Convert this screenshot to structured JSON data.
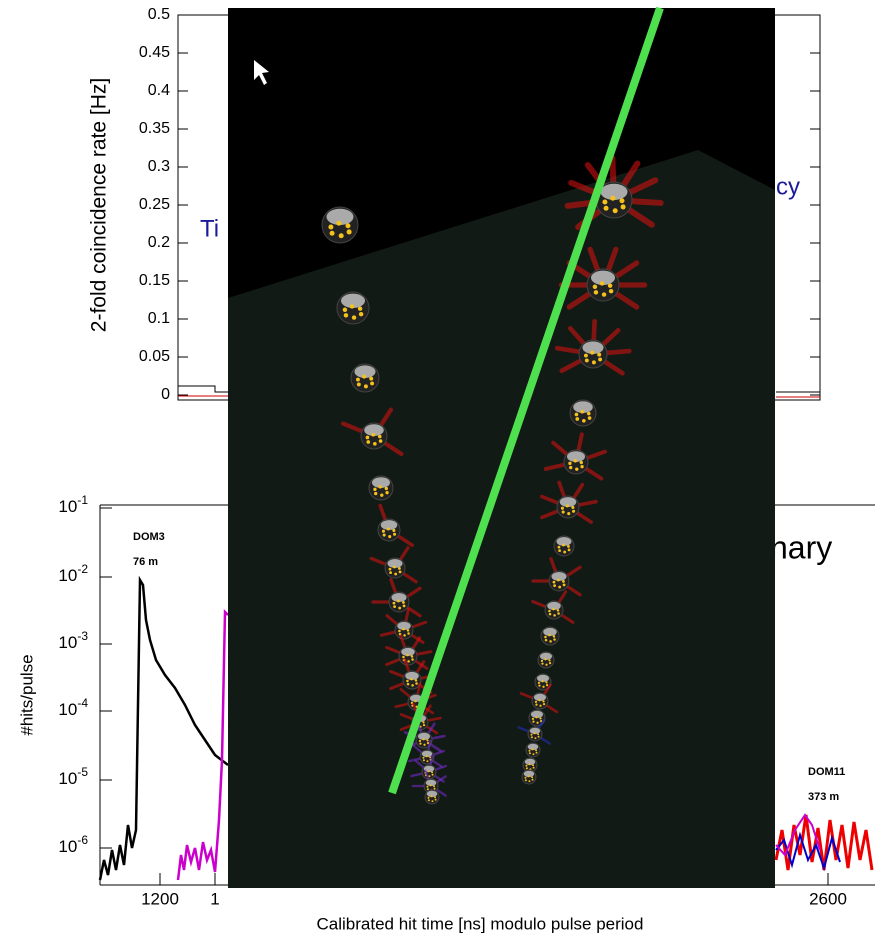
{
  "top_plot": {
    "y_label": "2-fold coincidence rate [Hz]",
    "yticks": [
      "0",
      "0.05",
      "0.1",
      "0.15",
      "0.2",
      "0.25",
      "0.3",
      "0.35",
      "0.4",
      "0.45",
      "0.5"
    ],
    "text_left": "Ti",
    "text_right": "cy"
  },
  "bottom_plot": {
    "y_label": "#hits/pulse",
    "yticks": [
      {
        "base": "10",
        "exponent": "-1"
      },
      {
        "base": "10",
        "exponent": "-2"
      },
      {
        "base": "10",
        "exponent": "-3"
      },
      {
        "base": "10",
        "exponent": "-4"
      },
      {
        "base": "10",
        "exponent": "-5"
      },
      {
        "base": "10",
        "exponent": "-6"
      }
    ],
    "xticks": [
      "1200",
      "1",
      "2600"
    ],
    "x_label": "Calibrated hit time [ns] modulo pulse period",
    "labels": [
      {
        "name": "DOM3",
        "depth": "76 m"
      },
      {
        "name": "DOM11",
        "depth": "373 m"
      }
    ],
    "text_right": "nary"
  }
}
